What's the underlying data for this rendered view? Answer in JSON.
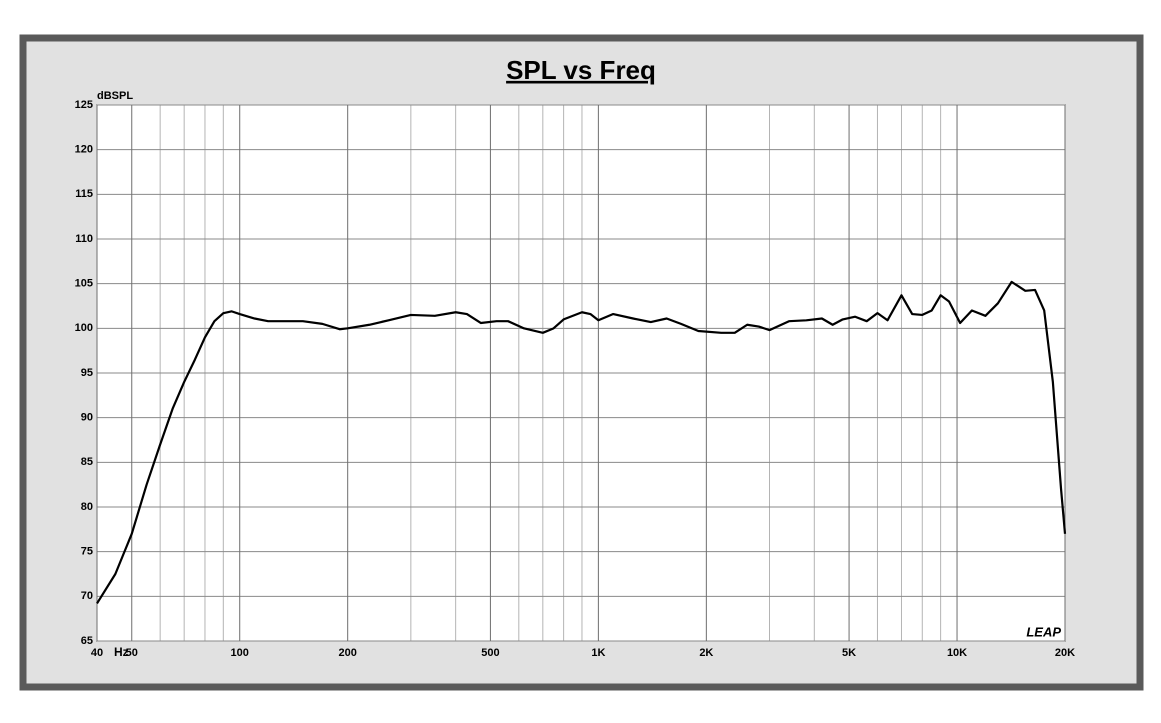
{
  "chart_data": {
    "type": "line",
    "title": "SPL vs Freq",
    "y_label": "dBSPL",
    "x_label": "Hz",
    "logo": "LEAP",
    "x_scale": "log",
    "grid": true,
    "xlim": [
      40,
      20000
    ],
    "ylim": [
      65,
      125
    ],
    "xticks": [
      40,
      50,
      100,
      200,
      500,
      {
        "value": 1000,
        "label": "1K"
      },
      {
        "value": 2000,
        "label": "2K"
      },
      {
        "value": 5000,
        "label": "5K"
      },
      {
        "value": 10000,
        "label": "10K"
      },
      {
        "value": 20000,
        "label": "20K"
      }
    ],
    "x_minor_ticks": [
      60,
      70,
      80,
      90,
      300,
      400,
      600,
      700,
      800,
      900,
      3000,
      4000,
      6000,
      7000,
      8000,
      9000
    ],
    "yticks": [
      65,
      70,
      75,
      80,
      85,
      90,
      95,
      100,
      105,
      110,
      115,
      120,
      125
    ],
    "series": [
      {
        "name": "SPL",
        "color": "#000000",
        "x": [
          40,
          45,
          50,
          55,
          60,
          65,
          70,
          75,
          80,
          85,
          90,
          95,
          100,
          110,
          120,
          150,
          170,
          190,
          200,
          230,
          260,
          300,
          350,
          400,
          430,
          470,
          520,
          560,
          620,
          700,
          750,
          800,
          900,
          950,
          1000,
          1100,
          1250,
          1400,
          1550,
          1700,
          1900,
          2200,
          2400,
          2600,
          2800,
          3000,
          3400,
          3800,
          4200,
          4500,
          4800,
          5200,
          5600,
          6000,
          6400,
          7000,
          7500,
          8000,
          8500,
          9000,
          9500,
          10200,
          11000,
          12000,
          13000,
          14200,
          15500,
          16500,
          17500,
          18500,
          19500,
          20000
        ],
        "values": [
          69.2,
          72.5,
          77,
          82.5,
          87,
          91,
          94,
          96.5,
          99,
          100.8,
          101.7,
          101.9,
          101.6,
          101.1,
          100.8,
          100.8,
          100.5,
          99.9,
          100,
          100.4,
          100.9,
          101.5,
          101.4,
          101.8,
          101.6,
          100.6,
          100.8,
          100.8,
          100,
          99.5,
          100,
          101,
          101.8,
          101.6,
          100.9,
          101.6,
          101.1,
          100.7,
          101.1,
          100.5,
          99.7,
          99.5,
          99.5,
          100.4,
          100.2,
          99.8,
          100.8,
          100.9,
          101.1,
          100.4,
          101,
          101.3,
          100.8,
          101.7,
          100.9,
          103.7,
          101.6,
          101.5,
          102,
          103.7,
          103,
          100.6,
          102,
          101.4,
          102.8,
          105.2,
          104.2,
          104.3,
          102,
          94,
          82,
          77
        ]
      }
    ]
  }
}
